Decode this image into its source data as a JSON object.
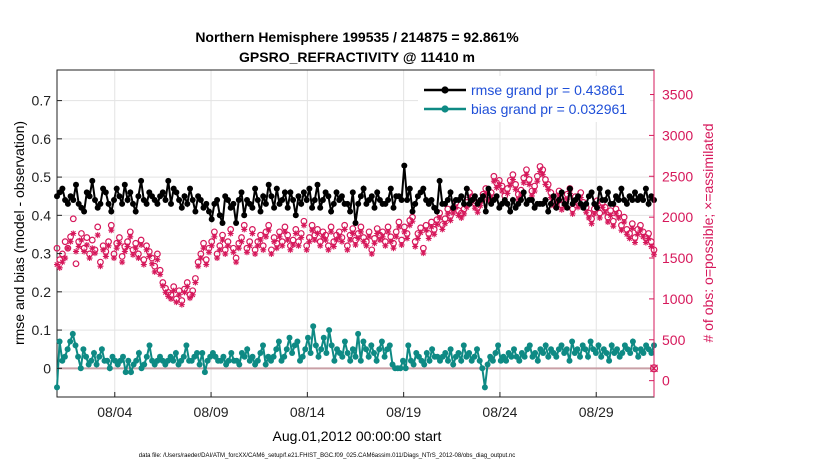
{
  "chart_data": {
    "type": "line",
    "title": "Northern Hemisphere 199535 / 214875 = 92.861%",
    "subtitle": "GPSRO_REFRACTIVITY @ 11410 m",
    "xlabel": "Aug.01,2012 00:00:00 start",
    "ylabel_left": "rmse and bias (model - observation)",
    "ylabel_right": "# of obs: o=possible; ×=assimilated",
    "footnote": "data file: /Users/raeder/DAI/ATM_forcXX/CAM6_setup/f.e21.FHIST_BGC.f09_025.CAM6assim.011/Diags_NTrS_2012-08/obs_diag_output.nc",
    "x_tick_labels": [
      "08/04",
      "08/09",
      "08/14",
      "08/19",
      "08/24",
      "08/29"
    ],
    "x_tick_days": [
      4,
      9,
      14,
      19,
      24,
      29
    ],
    "xlim_days": [
      1,
      32
    ],
    "ylim_left": [
      -0.075,
      0.78
    ],
    "yticks_left": [
      "0",
      "0.1",
      "0.2",
      "0.3",
      "0.4",
      "0.5",
      "0.6",
      "0.7"
    ],
    "ylim_right": [
      -200,
      3800
    ],
    "yticks_right": [
      "0",
      "500",
      "1000",
      "1500",
      "2000",
      "2500",
      "3000",
      "3500"
    ],
    "grid": true,
    "legend_position": "top-right",
    "colors": {
      "rmse": "#000000",
      "bias": "#0e8a84",
      "counts": "#d6185b",
      "zero_line": "#c9a0a6",
      "legend_text": "#1f4fd8",
      "right_axis": "#d6185b"
    },
    "series": [
      {
        "name": "rmse grand pr = 0.43861",
        "axis": "left",
        "marker": "filled-circle",
        "values": [
          0.45,
          0.46,
          0.47,
          0.44,
          0.43,
          0.45,
          0.44,
          0.48,
          0.43,
          0.42,
          0.41,
          0.46,
          0.45,
          0.49,
          0.44,
          0.42,
          0.43,
          0.47,
          0.46,
          0.43,
          0.41,
          0.44,
          0.47,
          0.45,
          0.43,
          0.48,
          0.44,
          0.46,
          0.43,
          0.41,
          0.45,
          0.49,
          0.44,
          0.43,
          0.46,
          0.45,
          0.44,
          0.43,
          0.45,
          0.46,
          0.44,
          0.49,
          0.43,
          0.47,
          0.46,
          0.44,
          0.42,
          0.45,
          0.43,
          0.47,
          0.44,
          0.41,
          0.45,
          0.44,
          0.42,
          0.43,
          0.41,
          0.39,
          0.43,
          0.44,
          0.4,
          0.38,
          0.45,
          0.44,
          0.42,
          0.43,
          0.38,
          0.44,
          0.46,
          0.4,
          0.44,
          0.43,
          0.42,
          0.47,
          0.44,
          0.41,
          0.45,
          0.43,
          0.48,
          0.45,
          0.42,
          0.47,
          0.43,
          0.44,
          0.46,
          0.42,
          0.46,
          0.44,
          0.4,
          0.45,
          0.43,
          0.46,
          0.44,
          0.47,
          0.42,
          0.44,
          0.48,
          0.42,
          0.44,
          0.46,
          0.45,
          0.41,
          0.43,
          0.46,
          0.44,
          0.45,
          0.43,
          0.43,
          0.41,
          0.46,
          0.38,
          0.43,
          0.45,
          0.47,
          0.43,
          0.44,
          0.45,
          0.42,
          0.46,
          0.44,
          0.43,
          0.43,
          0.44,
          0.47,
          0.42,
          0.45,
          0.45,
          0.44,
          0.53,
          0.44,
          0.47,
          0.41,
          0.43,
          0.45,
          0.46,
          0.47,
          0.44,
          0.43,
          0.44,
          0.42,
          0.41,
          0.49,
          0.43,
          0.43,
          0.44,
          0.46,
          0.42,
          0.44,
          0.44,
          0.45,
          0.43,
          0.47,
          0.43,
          0.44,
          0.45,
          0.43,
          0.44,
          0.45,
          0.41,
          0.47,
          0.43,
          0.44,
          0.45,
          0.42,
          0.43,
          0.44,
          0.43,
          0.41,
          0.44,
          0.42,
          0.43,
          0.44,
          0.46,
          0.43,
          0.44,
          0.44,
          0.42,
          0.43,
          0.43,
          0.43,
          0.44,
          0.41,
          0.43,
          0.45,
          0.42,
          0.44,
          0.46,
          0.43,
          0.42,
          0.47,
          0.43,
          0.44,
          0.45,
          0.43,
          0.42,
          0.43,
          0.45,
          0.46,
          0.43,
          0.42,
          0.47,
          0.44,
          0.44,
          0.46,
          0.43,
          0.43,
          0.45,
          0.44,
          0.47,
          0.44,
          0.43,
          0.45,
          0.44,
          0.46,
          0.44,
          0.45,
          0.44,
          0.47,
          0.43,
          0.45,
          0.44
        ]
      },
      {
        "name": "bias grand pr = 0.032961",
        "axis": "left",
        "marker": "filled-circle",
        "values": [
          -0.05,
          0.07,
          0.02,
          0.03,
          0.05,
          0.07,
          0.09,
          0.06,
          0.03,
          0.0,
          0.05,
          0.03,
          0.01,
          0.02,
          0.04,
          0.01,
          0.03,
          0.05,
          0.02,
          0.02,
          0.0,
          0.03,
          0.02,
          0.01,
          0.02,
          0.03,
          -0.01,
          0.02,
          -0.01,
          0.01,
          0.02,
          0.04,
          0.0,
          0.01,
          0.03,
          0.06,
          0.02,
          0.01,
          0.02,
          0.03,
          0.02,
          0.01,
          0.02,
          0.03,
          0.02,
          0.04,
          0.01,
          0.02,
          0.03,
          0.06,
          0.02,
          0.02,
          0.03,
          0.04,
          0.01,
          0.04,
          -0.01,
          0.02,
          0.03,
          0.04,
          0.03,
          0.02,
          0.02,
          0.03,
          0.01,
          0.02,
          0.04,
          0.02,
          0.02,
          0.01,
          0.04,
          0.03,
          0.05,
          0.02,
          0.03,
          0.01,
          0.02,
          0.04,
          0.06,
          0.01,
          0.03,
          0.02,
          0.03,
          0.05,
          0.07,
          0.02,
          0.03,
          0.05,
          0.08,
          0.04,
          0.06,
          0.07,
          0.02,
          0.03,
          0.05,
          0.08,
          0.04,
          0.11,
          0.06,
          0.03,
          0.05,
          0.08,
          0.04,
          0.1,
          0.06,
          0.02,
          0.05,
          0.04,
          0.03,
          0.07,
          0.04,
          0.02,
          0.05,
          0.03,
          0.09,
          0.02,
          0.07,
          0.05,
          0.03,
          0.06,
          0.04,
          0.02,
          0.05,
          0.07,
          0.03,
          0.05,
          0.06,
          0.01,
          0.0,
          0.0,
          0.0,
          0.02,
          0.0,
          0.06,
          0.02,
          0.01,
          0.04,
          0.03,
          0.02,
          0.01,
          0.04,
          0.02,
          0.05,
          0.03,
          0.03,
          0.02,
          0.03,
          0.04,
          0.02,
          0.05,
          0.01,
          0.03,
          0.04,
          0.02,
          0.06,
          0.03,
          0.04,
          0.02,
          0.03,
          0.05,
          0.02,
          0.0,
          -0.05,
          0.01,
          0.03,
          0.02,
          0.04,
          0.06,
          0.02,
          0.03,
          0.02,
          0.04,
          0.03,
          0.05,
          0.03,
          0.02,
          0.04,
          0.03,
          0.05,
          0.06,
          0.03,
          0.04,
          0.02,
          0.05,
          0.04,
          0.06,
          0.03,
          0.05,
          0.04,
          0.03,
          0.05,
          0.06,
          0.04,
          0.05,
          0.02,
          0.07,
          0.04,
          0.05,
          0.03,
          0.06,
          0.05,
          0.03,
          0.07,
          0.05,
          0.04,
          0.06,
          0.03,
          0.05,
          0.04,
          0.02,
          0.06,
          0.04,
          0.05,
          0.03,
          0.04,
          0.06,
          0.05,
          0.04,
          0.07,
          0.05,
          0.03,
          0.05,
          0.04,
          0.06,
          0.05,
          0.04,
          0.06
        ]
      },
      {
        "name": "possible",
        "axis": "right",
        "marker": "open-circle",
        "values": [
          1620,
          1480,
          1550,
          1700,
          1620,
          1760,
          1980,
          1430,
          1700,
          1800,
          1620,
          1750,
          1550,
          1720,
          1600,
          1880,
          1450,
          1650,
          1580,
          1700,
          1900,
          1550,
          1680,
          1750,
          1520,
          1640,
          1700,
          1820,
          1600,
          1680,
          1550,
          1720,
          1480,
          1650,
          1580,
          1500,
          1400,
          1550,
          1350,
          1200,
          1130,
          1080,
          1050,
          1150,
          1000,
          1100,
          980,
          1120,
          1200,
          1050,
          1100,
          1250,
          1450,
          1550,
          1680,
          1480,
          1620,
          1700,
          1820,
          1550,
          1650,
          1780,
          1600,
          1700,
          1850,
          1620,
          1500,
          1680,
          1750,
          1900,
          1620,
          1700,
          1850,
          1600,
          1700,
          1780,
          1650,
          1820,
          1900,
          1600,
          1750,
          1680,
          1820,
          1700,
          1880,
          1780,
          1650,
          1720,
          1850,
          1700,
          1800,
          1950,
          1650,
          1750,
          1900,
          1780,
          1850,
          1700,
          1820,
          1780,
          1650,
          1880,
          1700,
          1780,
          1820,
          1750,
          1900,
          1650,
          1780,
          1860,
          1720,
          1800,
          1880,
          1750,
          1700,
          1820,
          1600,
          1740,
          1860,
          1780,
          1820,
          1700,
          1880,
          1760,
          1680,
          1820,
          1940,
          1720,
          1880,
          1800,
          1960,
          2000,
          1700,
          1800,
          1870,
          1620,
          1900,
          1800,
          1940,
          1850,
          1970,
          2050,
          1910,
          1980,
          2100,
          2020,
          2110,
          2180,
          2080,
          2050,
          2100,
          2180,
          2300,
          2250,
          2170,
          2120,
          2200,
          2280,
          2350,
          2260,
          2300,
          2500,
          2420,
          2450,
          2380,
          2260,
          2350,
          2450,
          2520,
          2400,
          2280,
          2330,
          2480,
          2580,
          2460,
          2320,
          2380,
          2500,
          2620,
          2580,
          2460,
          2400,
          2300,
          2200,
          2250,
          2320,
          2150,
          2200,
          2280,
          2350,
          2100,
          2250,
          2180,
          2300,
          2180,
          2120,
          2050,
          1980,
          2100,
          2200,
          2050,
          2180,
          2120,
          2000,
          2080,
          1950,
          2100,
          2050,
          1900,
          2000,
          1850,
          1800,
          1920,
          1750,
          1850,
          1900,
          1820,
          1750,
          1800,
          1700,
          1600
        ]
      },
      {
        "name": "assimilated",
        "axis": "right",
        "marker": "asterisk",
        "values": [
          1420,
          1380,
          1450,
          1500,
          1620,
          1700,
          1800,
          1580,
          1640,
          1720,
          1580,
          1660,
          1500,
          1620,
          1560,
          1780,
          1400,
          1600,
          1520,
          1650,
          1840,
          1500,
          1620,
          1680,
          1450,
          1580,
          1640,
          1760,
          1540,
          1620,
          1500,
          1660,
          1420,
          1600,
          1520,
          1430,
          1330,
          1480,
          1300,
          1160,
          1080,
          1030,
          1000,
          1100,
          960,
          1050,
          930,
          1080,
          1150,
          1010,
          1050,
          1200,
          1400,
          1500,
          1620,
          1420,
          1570,
          1650,
          1760,
          1500,
          1600,
          1720,
          1550,
          1650,
          1800,
          1570,
          1450,
          1620,
          1700,
          1850,
          1570,
          1650,
          1800,
          1550,
          1650,
          1720,
          1600,
          1760,
          1840,
          1550,
          1700,
          1620,
          1760,
          1650,
          1820,
          1720,
          1600,
          1660,
          1800,
          1650,
          1750,
          1900,
          1600,
          1700,
          1840,
          1720,
          1800,
          1650,
          1760,
          1720,
          1600,
          1820,
          1640,
          1720,
          1760,
          1700,
          1850,
          1600,
          1720,
          1800,
          1660,
          1740,
          1820,
          1700,
          1650,
          1760,
          1550,
          1680,
          1800,
          1720,
          1760,
          1650,
          1820,
          1700,
          1620,
          1760,
          1880,
          1660,
          1820,
          1740,
          1900,
          1950,
          1640,
          1740,
          1810,
          1560,
          1840,
          1740,
          1880,
          1790,
          1910,
          1990,
          1850,
          1920,
          2040,
          1960,
          2050,
          2120,
          2020,
          1990,
          2040,
          2120,
          2240,
          2190,
          2110,
          2060,
          2140,
          2220,
          2290,
          2200,
          2240,
          2440,
          2360,
          2390,
          2320,
          2200,
          2290,
          2390,
          2460,
          2340,
          2220,
          2270,
          2420,
          2520,
          2400,
          2260,
          2320,
          2440,
          2560,
          2520,
          2400,
          2340,
          2240,
          2140,
          2190,
          2260,
          2090,
          2140,
          2220,
          2290,
          2040,
          2190,
          2120,
          2240,
          2120,
          2060,
          1990,
          1920,
          2040,
          2140,
          1990,
          2120,
          2060,
          1940,
          2020,
          1890,
          2040,
          1990,
          1840,
          1940,
          1790,
          1740,
          1860,
          1690,
          1790,
          1840,
          1760,
          1690,
          1740,
          1640,
          1540
        ]
      }
    ]
  }
}
